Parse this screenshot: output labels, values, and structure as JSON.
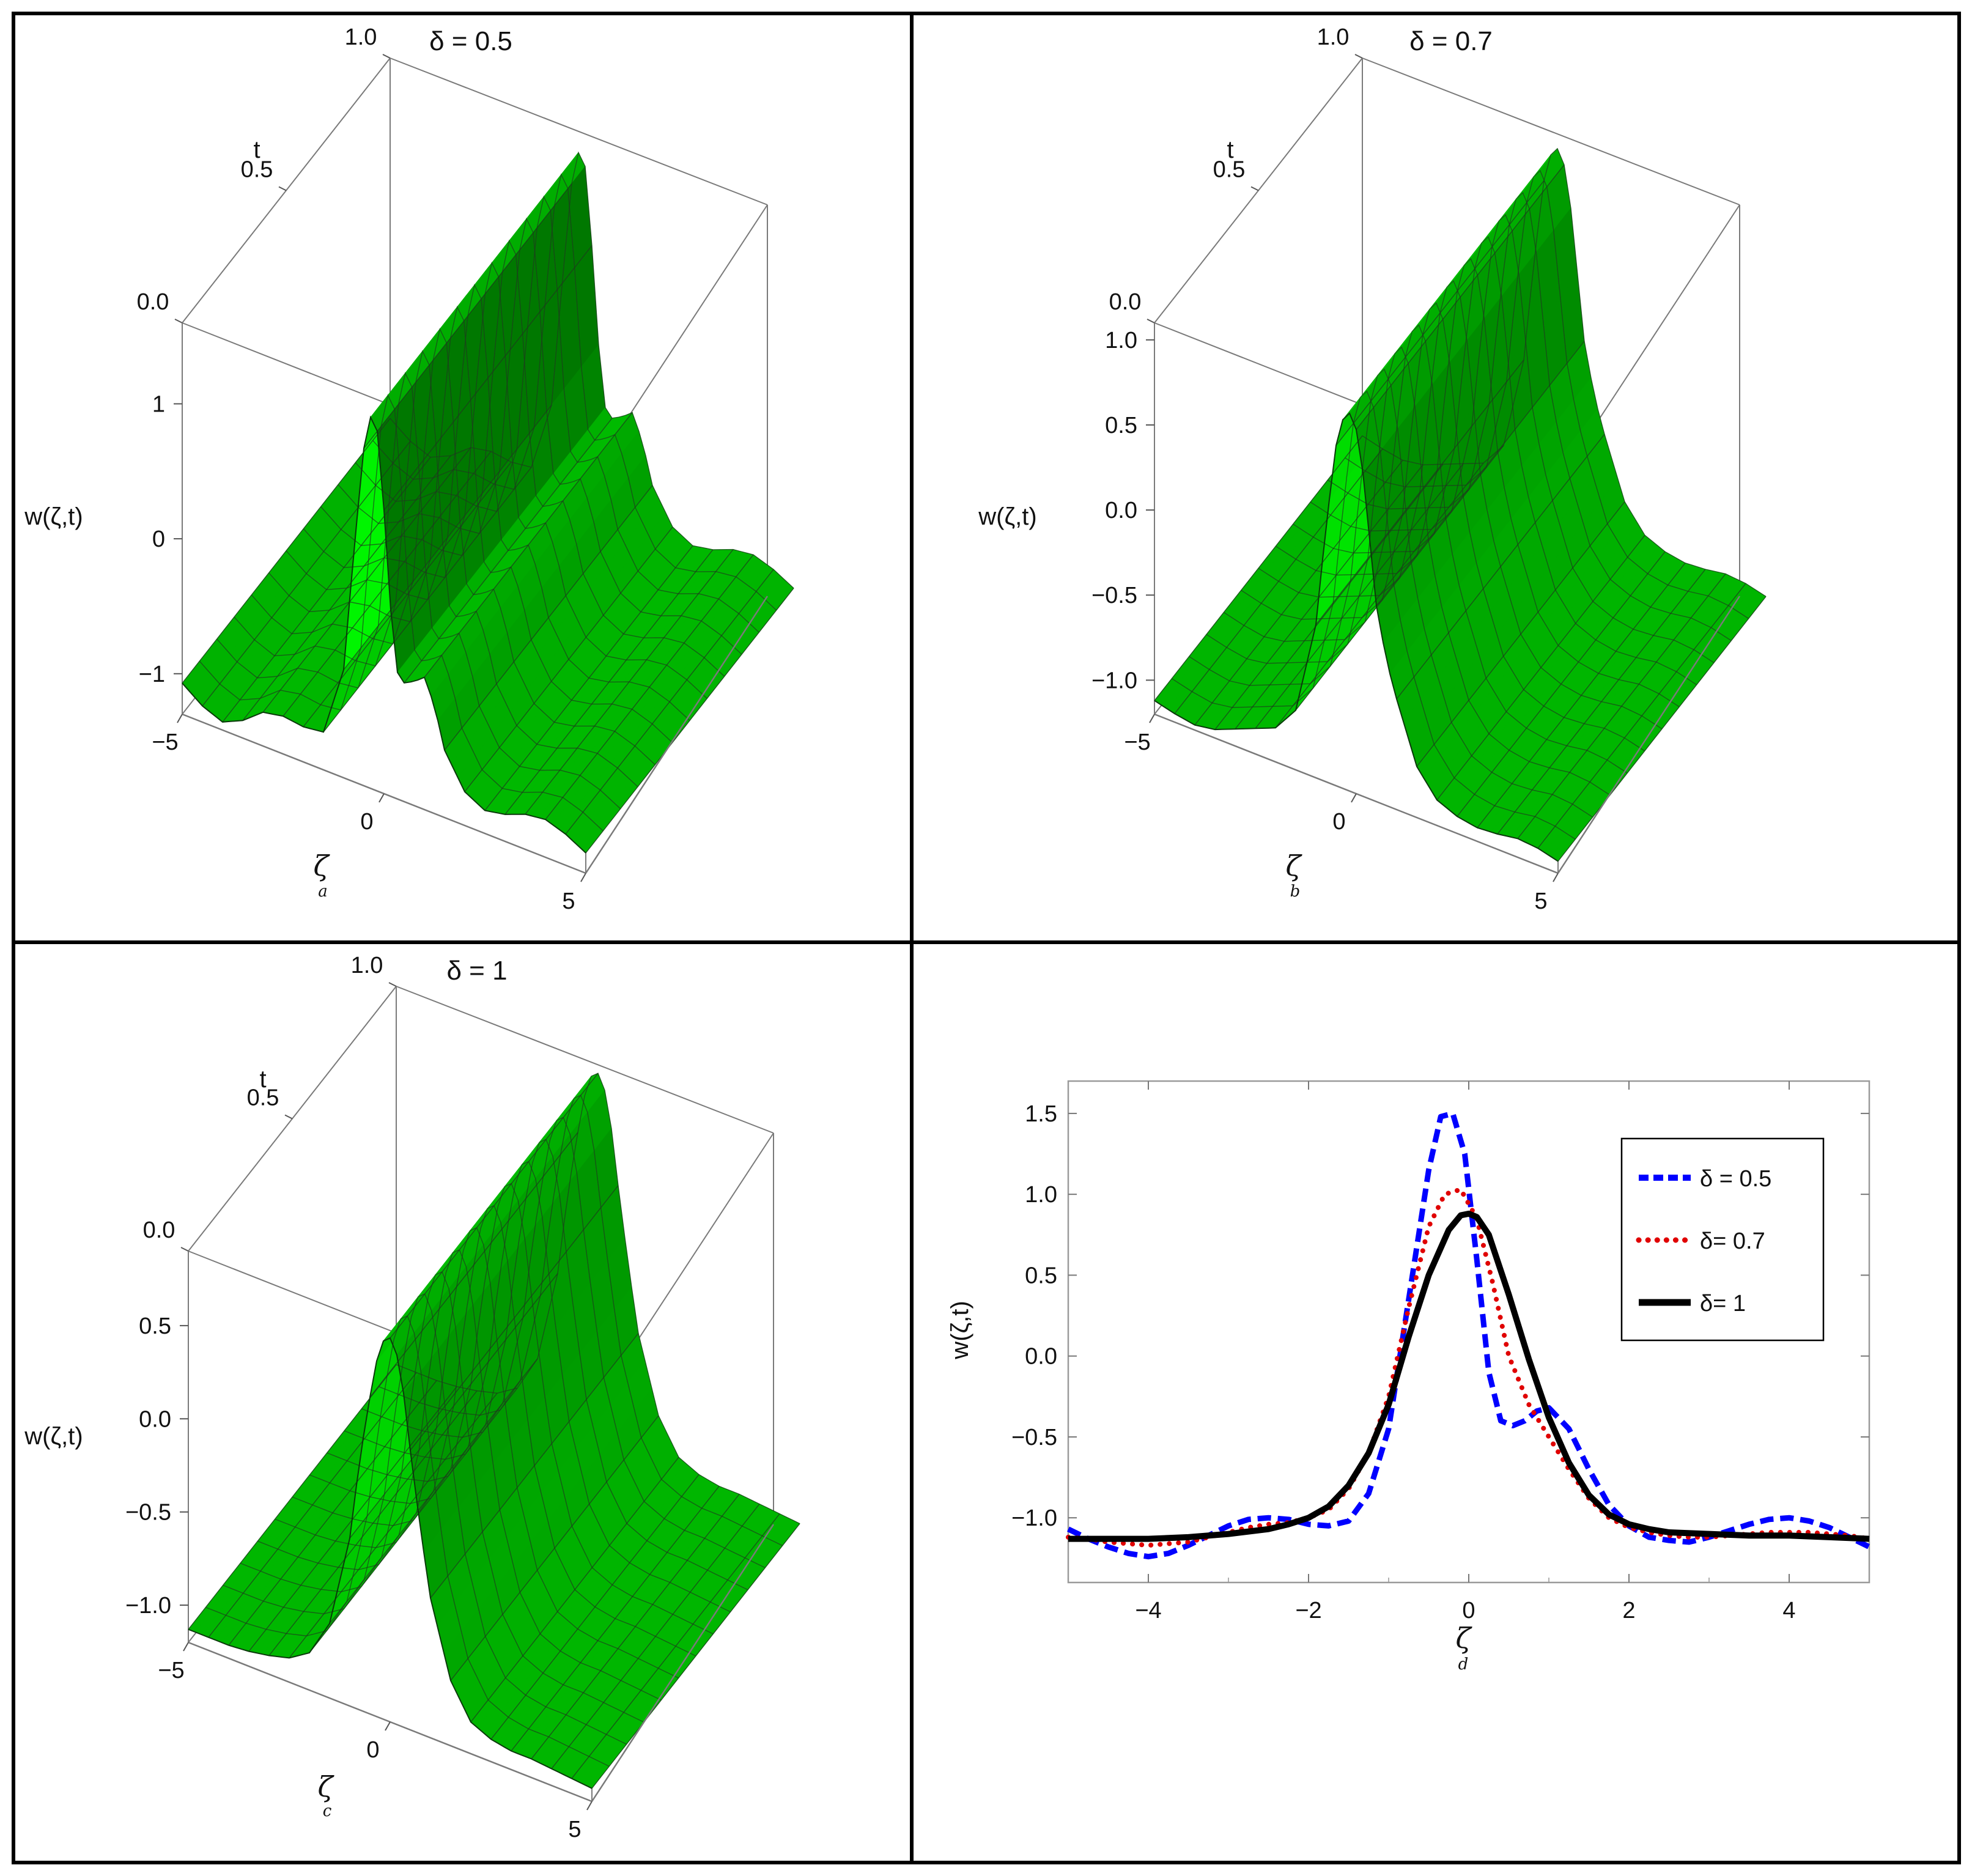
{
  "chart_data": [
    {
      "panel": "a",
      "type": "surface3d",
      "title": "δ = 0.5",
      "delta": 0.5,
      "xlabel": "ζ",
      "ylabel": "t",
      "zlabel": "w(ζ,t)",
      "x_ticks": [
        "-5",
        "0",
        "5"
      ],
      "y_ticks": [
        "0.0",
        "0.5",
        "1.0"
      ],
      "z_ticks": [
        "-1",
        "0",
        "1"
      ],
      "xlim": [
        -5,
        5
      ],
      "ylim": [
        0,
        1
      ],
      "zlim": [
        -1.3,
        1.6
      ],
      "caption": "a",
      "surface_color": "#00ee00",
      "profile": {
        "x": [
          -5,
          -4.5,
          -4,
          -3.5,
          -3,
          -2.5,
          -2,
          -1.5,
          -1,
          -0.75,
          -0.5,
          -0.3,
          -0.1,
          0.1,
          0.3,
          0.5,
          0.75,
          1,
          1.25,
          1.5,
          2,
          2.5,
          3,
          3.5,
          4,
          4.5,
          5
        ],
        "w": [
          -1.07,
          -1.18,
          -1.24,
          -1.17,
          -1.05,
          -1.02,
          -1.04,
          -1.02,
          -0.5,
          0.4,
          1.2,
          1.5,
          1.3,
          0.3,
          -0.35,
          -0.42,
          -0.38,
          -0.32,
          -0.5,
          -0.8,
          -1.05,
          -1.13,
          -1.1,
          -1.04,
          -1.02,
          -1.07,
          -1.15
        ]
      }
    },
    {
      "panel": "b",
      "type": "surface3d",
      "title": "δ = 0.7",
      "delta": 0.7,
      "xlabel": "ζ",
      "ylabel": "t",
      "zlabel": "w(ζ,t)",
      "x_ticks": [
        "-5",
        "0",
        "5"
      ],
      "y_ticks": [
        "0.0",
        "0.5",
        "1.0"
      ],
      "z_ticks": [
        "-1.0",
        "-0.5",
        "0.0",
        "0.5",
        "1.0"
      ],
      "xlim": [
        -5,
        5
      ],
      "ylim": [
        0,
        1
      ],
      "zlim": [
        -1.2,
        1.1
      ],
      "caption": "b",
      "surface_color": "#00ee00",
      "profile": {
        "x": [
          -5,
          -4.5,
          -4,
          -3.5,
          -3,
          -2.5,
          -2,
          -1.5,
          -1,
          -0.75,
          -0.5,
          -0.3,
          -0.1,
          0.1,
          0.3,
          0.5,
          0.75,
          1,
          1.5,
          2,
          2.5,
          3,
          3.5,
          4,
          4.5,
          5
        ],
        "w": [
          -1.12,
          -1.15,
          -1.17,
          -1.15,
          -1.1,
          -1.05,
          -1.0,
          -0.85,
          -0.3,
          0.3,
          0.8,
          1.0,
          1.03,
          0.85,
          0.4,
          -0.05,
          -0.35,
          -0.55,
          -0.9,
          -1.05,
          -1.1,
          -1.12,
          -1.11,
          -1.09,
          -1.1,
          -1.13
        ]
      }
    },
    {
      "panel": "c",
      "type": "surface3d",
      "title": "δ = 1",
      "delta": 1,
      "xlabel": "ζ",
      "ylabel": "t",
      "zlabel": "w(ζ,t)",
      "x_ticks": [
        "-5",
        "0",
        "5"
      ],
      "y_ticks": [
        "0.0",
        "0.5",
        "1.0"
      ],
      "z_ticks": [
        "-1.0",
        "-0.5",
        "0.0",
        "0.5"
      ],
      "xlim": [
        -5,
        5
      ],
      "ylim": [
        0,
        1
      ],
      "zlim": [
        -1.2,
        0.9
      ],
      "caption": "c",
      "surface_color": "#00ee00",
      "profile": {
        "x": [
          -5,
          -4.5,
          -4,
          -3.5,
          -3,
          -2.5,
          -2,
          -1.5,
          -1,
          -0.75,
          -0.5,
          -0.3,
          -0.1,
          0.1,
          0.3,
          0.5,
          0.75,
          1,
          1.5,
          2,
          2.5,
          3,
          3.5,
          4,
          4.5,
          5
        ],
        "w": [
          -1.13,
          -1.13,
          -1.13,
          -1.12,
          -1.1,
          -1.07,
          -1.0,
          -0.8,
          -0.3,
          0.15,
          0.5,
          0.75,
          0.87,
          0.85,
          0.65,
          0.3,
          -0.1,
          -0.45,
          -0.85,
          -1.03,
          -1.08,
          -1.1,
          -1.1,
          -1.11,
          -1.12,
          -1.13
        ]
      }
    },
    {
      "panel": "d",
      "type": "line",
      "title": "",
      "xlabel": "ζ",
      "ylabel": "w(ζ,t)",
      "xlim": [
        -5,
        5
      ],
      "ylim": [
        -1.4,
        1.7
      ],
      "x_ticks": [
        -4,
        -2,
        0,
        2,
        4
      ],
      "y_ticks": [
        -1.0,
        -0.5,
        0.0,
        0.5,
        1.0,
        1.5
      ],
      "grid": false,
      "legend_position": "top-right",
      "caption": "d",
      "series": [
        {
          "name": "δ = 0.5",
          "color": "#0000ff",
          "dash": "dashed",
          "x": [
            -5,
            -4.75,
            -4.5,
            -4.25,
            -4,
            -3.75,
            -3.5,
            -3.25,
            -3,
            -2.75,
            -2.5,
            -2.25,
            -2,
            -1.75,
            -1.5,
            -1.25,
            -1,
            -0.75,
            -0.5,
            -0.35,
            -0.2,
            -0.05,
            0.1,
            0.25,
            0.4,
            0.55,
            0.7,
            0.85,
            1,
            1.25,
            1.5,
            1.75,
            2,
            2.25,
            2.5,
            2.75,
            3,
            3.25,
            3.5,
            3.75,
            4,
            4.25,
            4.5,
            4.75,
            5
          ],
          "y": [
            -1.07,
            -1.13,
            -1.18,
            -1.22,
            -1.24,
            -1.22,
            -1.17,
            -1.11,
            -1.05,
            -1.01,
            -1.0,
            -1.01,
            -1.04,
            -1.05,
            -1.02,
            -0.85,
            -0.45,
            0.35,
            1.15,
            1.48,
            1.5,
            1.25,
            0.6,
            -0.1,
            -0.4,
            -0.43,
            -0.4,
            -0.34,
            -0.32,
            -0.45,
            -0.7,
            -0.92,
            -1.05,
            -1.12,
            -1.14,
            -1.15,
            -1.12,
            -1.08,
            -1.04,
            -1.01,
            -1.0,
            -1.02,
            -1.06,
            -1.12,
            -1.18
          ]
        },
        {
          "name": "δ= 0.7",
          "color": "#e00000",
          "dash": "dotted",
          "x": [
            -5,
            -4.75,
            -4.5,
            -4.25,
            -4,
            -3.75,
            -3.5,
            -3.25,
            -3,
            -2.75,
            -2.5,
            -2.25,
            -2,
            -1.75,
            -1.5,
            -1.25,
            -1,
            -0.75,
            -0.5,
            -0.3,
            -0.1,
            0.1,
            0.3,
            0.5,
            0.75,
            1,
            1.25,
            1.5,
            1.75,
            2,
            2.25,
            2.5,
            2.75,
            3,
            3.25,
            3.5,
            3.75,
            4,
            4.25,
            4.5,
            4.75,
            5
          ],
          "y": [
            -1.12,
            -1.13,
            -1.15,
            -1.16,
            -1.17,
            -1.16,
            -1.15,
            -1.12,
            -1.09,
            -1.06,
            -1.04,
            -1.03,
            -1.0,
            -0.95,
            -0.82,
            -0.6,
            -0.25,
            0.3,
            0.8,
            1.0,
            1.03,
            0.85,
            0.45,
            0.0,
            -0.3,
            -0.5,
            -0.7,
            -0.88,
            -1.0,
            -1.06,
            -1.09,
            -1.11,
            -1.12,
            -1.12,
            -1.11,
            -1.1,
            -1.09,
            -1.09,
            -1.09,
            -1.1,
            -1.11,
            -1.13
          ]
        },
        {
          "name": "δ= 1",
          "color": "#000000",
          "dash": "solid",
          "x": [
            -5,
            -4.5,
            -4,
            -3.5,
            -3,
            -2.5,
            -2.25,
            -2,
            -1.75,
            -1.5,
            -1.25,
            -1,
            -0.75,
            -0.5,
            -0.25,
            -0.1,
            0,
            0.1,
            0.25,
            0.5,
            0.75,
            1,
            1.25,
            1.5,
            1.75,
            2,
            2.25,
            2.5,
            3,
            3.5,
            4,
            4.5,
            5
          ],
          "y": [
            -1.13,
            -1.13,
            -1.13,
            -1.12,
            -1.1,
            -1.07,
            -1.04,
            -1.0,
            -0.93,
            -0.8,
            -0.6,
            -0.3,
            0.12,
            0.5,
            0.78,
            0.87,
            0.88,
            0.86,
            0.75,
            0.38,
            -0.02,
            -0.38,
            -0.66,
            -0.86,
            -0.98,
            -1.04,
            -1.07,
            -1.09,
            -1.1,
            -1.11,
            -1.11,
            -1.12,
            -1.13
          ]
        }
      ]
    }
  ]
}
